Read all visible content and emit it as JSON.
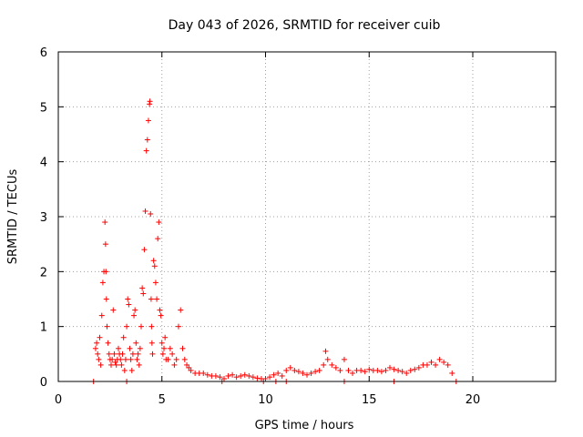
{
  "chart_data": {
    "type": "scatter",
    "title": "Day 043 of 2026, SRMTID for receiver cuib",
    "xlabel": "GPS time / hours",
    "ylabel": "SRMTID / TECUs",
    "xlim": [
      0,
      24
    ],
    "ylim": [
      0,
      6
    ],
    "xticks": [
      0,
      5,
      10,
      15,
      20
    ],
    "yticks": [
      0,
      1,
      2,
      3,
      4,
      5,
      6
    ],
    "xtick_labels": [
      "0",
      "5",
      "10",
      "15",
      "20"
    ],
    "ytick_labels": [
      "0",
      "1",
      "2",
      "3",
      "4",
      "5",
      "6"
    ],
    "grid": true,
    "marker": "plus",
    "color": "#ff0000",
    "series": [
      {
        "name": "SRMTID",
        "x": [
          1.8,
          1.85,
          1.9,
          1.95,
          2.0,
          2.05,
          2.1,
          2.15,
          2.2,
          2.25,
          2.28,
          2.3,
          2.32,
          2.35,
          2.4,
          2.45,
          2.5,
          2.55,
          2.6,
          2.65,
          2.7,
          2.75,
          2.8,
          2.85,
          2.9,
          2.95,
          3.0,
          3.05,
          3.1,
          3.15,
          3.2,
          3.25,
          3.3,
          3.35,
          3.4,
          3.45,
          3.5,
          3.55,
          3.6,
          3.65,
          3.7,
          3.75,
          3.8,
          3.85,
          3.9,
          3.95,
          4.0,
          4.05,
          4.1,
          4.15,
          4.2,
          4.25,
          4.3,
          4.35,
          4.4,
          4.42,
          4.45,
          4.48,
          4.5,
          4.52,
          4.55,
          4.6,
          4.65,
          4.7,
          4.75,
          4.8,
          4.85,
          4.9,
          4.95,
          5.0,
          5.05,
          5.1,
          5.15,
          5.2,
          5.3,
          5.4,
          5.5,
          5.6,
          5.7,
          5.8,
          5.9,
          6.0,
          6.1,
          6.2,
          6.3,
          6.4,
          6.6,
          6.8,
          7.0,
          7.2,
          7.4,
          7.6,
          7.8,
          8.0,
          8.2,
          8.4,
          8.6,
          8.8,
          9.0,
          9.2,
          9.4,
          9.6,
          9.8,
          10.0,
          10.2,
          10.4,
          10.6,
          10.8,
          11.0,
          11.2,
          11.4,
          11.6,
          11.8,
          12.0,
          12.2,
          12.4,
          12.6,
          12.8,
          12.9,
          13.0,
          13.2,
          13.4,
          13.6,
          13.8,
          14.0,
          14.2,
          14.4,
          14.6,
          14.8,
          15.0,
          15.2,
          15.4,
          15.6,
          15.8,
          16.0,
          16.2,
          16.4,
          16.6,
          16.8,
          17.0,
          17.2,
          17.4,
          17.6,
          17.8,
          18.0,
          18.2,
          18.4,
          18.6,
          18.8,
          19.0,
          1.7,
          3.3,
          7.9,
          9.9,
          10.5,
          11.0,
          13.8,
          16.2,
          19.2
        ],
        "y": [
          0.6,
          0.7,
          0.5,
          0.4,
          0.8,
          0.3,
          1.2,
          1.8,
          2.0,
          2.9,
          2.5,
          2.0,
          1.5,
          1.0,
          0.7,
          0.5,
          0.4,
          0.3,
          0.4,
          1.3,
          0.5,
          0.35,
          0.3,
          0.4,
          0.6,
          0.5,
          0.4,
          0.3,
          0.5,
          0.8,
          0.2,
          0.4,
          1.0,
          1.5,
          1.4,
          0.6,
          0.4,
          0.2,
          0.5,
          1.2,
          1.3,
          0.7,
          0.4,
          0.5,
          0.3,
          0.6,
          1.0,
          1.7,
          1.6,
          2.4,
          3.1,
          4.2,
          4.4,
          4.75,
          5.05,
          5.1,
          3.05,
          1.5,
          1.0,
          0.7,
          0.5,
          2.2,
          2.1,
          1.8,
          1.5,
          2.6,
          2.9,
          1.3,
          1.2,
          0.7,
          0.5,
          0.6,
          0.8,
          0.4,
          0.4,
          0.6,
          0.5,
          0.3,
          0.4,
          1.0,
          1.3,
          0.6,
          0.4,
          0.3,
          0.25,
          0.2,
          0.15,
          0.15,
          0.15,
          0.12,
          0.1,
          0.1,
          0.08,
          0.05,
          0.1,
          0.12,
          0.08,
          0.1,
          0.12,
          0.1,
          0.08,
          0.06,
          0.05,
          0.05,
          0.08,
          0.12,
          0.15,
          0.1,
          0.2,
          0.25,
          0.2,
          0.18,
          0.15,
          0.12,
          0.15,
          0.18,
          0.2,
          0.3,
          0.55,
          0.4,
          0.3,
          0.25,
          0.2,
          0.4,
          0.2,
          0.15,
          0.2,
          0.2,
          0.18,
          0.22,
          0.2,
          0.2,
          0.18,
          0.2,
          0.25,
          0.22,
          0.2,
          0.18,
          0.15,
          0.2,
          0.22,
          0.25,
          0.3,
          0.3,
          0.35,
          0.3,
          0.4,
          0.35,
          0.3,
          0.15,
          0.0,
          0.0,
          0.0,
          0.0,
          0.0,
          0.0,
          0.0,
          0.0,
          0.0
        ]
      }
    ]
  }
}
